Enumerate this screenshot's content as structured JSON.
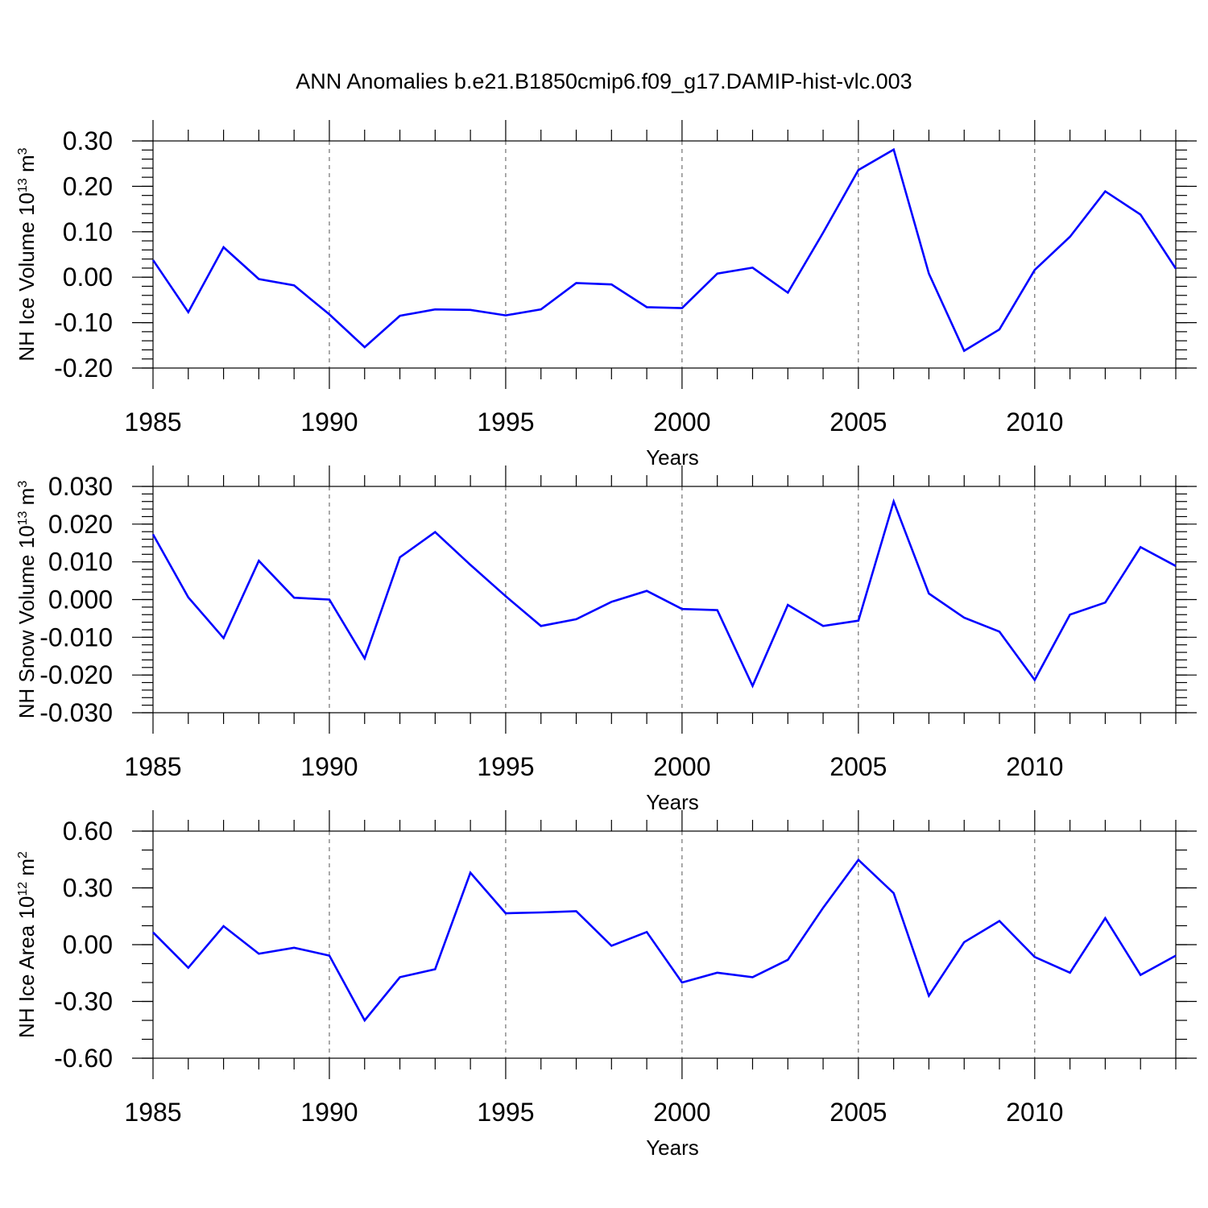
{
  "title": "ANN Anomalies b.e21.B1850cmip6.f09_g17.DAMIP-hist-vlc.003",
  "chart_data": [
    {
      "type": "line",
      "name": "ice-volume",
      "ylabel": "NH Ice Volume",
      "ylabel_unit_base": "10",
      "ylabel_unit_exp": "13",
      "ylabel_unit_symbol": "m",
      "ylabel_unit_sym_exp": "3",
      "xlabel": "Years",
      "xlim": [
        1985,
        2014
      ],
      "ylim": [
        -0.2,
        0.3
      ],
      "yticks": [
        -0.2,
        -0.1,
        0.0,
        0.1,
        0.2,
        0.3
      ],
      "ytick_labels": [
        "-0.20",
        "-0.10",
        "0.00",
        "0.10",
        "0.20",
        "0.30"
      ],
      "yminor_step": 0.02,
      "xticks": [
        1985,
        1990,
        1995,
        2000,
        2005,
        2010
      ],
      "xtick_labels": [
        "1985",
        "1990",
        "1995",
        "2000",
        "2005",
        "2010"
      ],
      "grid": "x-major-dashed",
      "color": "#0000ff",
      "x": [
        1985,
        1986,
        1987,
        1988,
        1989,
        1990,
        1991,
        1992,
        1993,
        1994,
        1995,
        1996,
        1997,
        1998,
        1999,
        2000,
        2001,
        2002,
        2003,
        2004,
        2005,
        2006,
        2007,
        2008,
        2009,
        2010,
        2011,
        2012,
        2013,
        2014
      ],
      "y": [
        0.038,
        -0.077,
        0.066,
        -0.004,
        -0.018,
        -0.082,
        -0.154,
        -0.085,
        -0.071,
        -0.072,
        -0.084,
        -0.071,
        -0.013,
        -0.016,
        -0.066,
        -0.068,
        0.008,
        0.021,
        -0.034,
        0.098,
        0.236,
        0.281,
        0.008,
        -0.162,
        -0.115,
        0.016,
        0.089,
        0.189,
        0.138,
        0.019
      ]
    },
    {
      "type": "line",
      "name": "snow-volume",
      "ylabel": "NH Snow Volume",
      "ylabel_unit_base": "10",
      "ylabel_unit_exp": "13",
      "ylabel_unit_symbol": "m",
      "ylabel_unit_sym_exp": "3",
      "xlabel": "Years",
      "xlim": [
        1985,
        2014
      ],
      "ylim": [
        -0.03,
        0.03
      ],
      "yticks": [
        -0.03,
        -0.02,
        -0.01,
        0.0,
        0.01,
        0.02,
        0.03
      ],
      "ytick_labels": [
        "-0.030",
        "-0.020",
        "-0.010",
        "0.000",
        "0.010",
        "0.020",
        "0.030"
      ],
      "yminor_step": 0.002,
      "xticks": [
        1985,
        1990,
        1995,
        2000,
        2005,
        2010
      ],
      "xtick_labels": [
        "1985",
        "1990",
        "1995",
        "2000",
        "2005",
        "2010"
      ],
      "grid": "x-major-dashed",
      "color": "#0000ff",
      "x": [
        1985,
        1986,
        1987,
        1988,
        1989,
        1990,
        1991,
        1992,
        1993,
        1994,
        1995,
        1996,
        1997,
        1998,
        1999,
        2000,
        2001,
        2002,
        2003,
        2004,
        2005,
        2006,
        2007,
        2008,
        2009,
        2010,
        2011,
        2012,
        2013,
        2014
      ],
      "y": [
        0.0173,
        0.0006,
        -0.0102,
        0.0103,
        0.0005,
        0.0,
        -0.0156,
        0.0112,
        0.0179,
        0.0092,
        0.0009,
        -0.007,
        -0.0052,
        -0.0006,
        0.0023,
        -0.0025,
        -0.0028,
        -0.0229,
        -0.0014,
        -0.007,
        -0.0056,
        0.026,
        0.0016,
        -0.0048,
        -0.0085,
        -0.0213,
        -0.004,
        -0.0008,
        0.0139,
        0.0089
      ]
    },
    {
      "type": "line",
      "name": "ice-area",
      "ylabel": "NH Ice Area",
      "ylabel_unit_base": "10",
      "ylabel_unit_exp": "12",
      "ylabel_unit_symbol": "m",
      "ylabel_unit_sym_exp": "2",
      "xlabel": "Years",
      "xlim": [
        1985,
        2014
      ],
      "ylim": [
        -0.6,
        0.6
      ],
      "yticks": [
        -0.6,
        -0.3,
        0.0,
        0.3,
        0.6
      ],
      "ytick_labels": [
        "-0.60",
        "-0.30",
        "0.00",
        "0.30",
        "0.60"
      ],
      "yminor_step": 0.1,
      "xticks": [
        1985,
        1990,
        1995,
        2000,
        2005,
        2010
      ],
      "xtick_labels": [
        "1985",
        "1990",
        "1995",
        "2000",
        "2005",
        "2010"
      ],
      "grid": "x-major-dashed",
      "color": "#0000ff",
      "x": [
        1985,
        1986,
        1987,
        1988,
        1989,
        1990,
        1991,
        1992,
        1993,
        1994,
        1995,
        1996,
        1997,
        1998,
        1999,
        2000,
        2001,
        2002,
        2003,
        2004,
        2005,
        2006,
        2007,
        2008,
        2009,
        2010,
        2011,
        2012,
        2013,
        2014
      ],
      "y": [
        0.065,
        -0.122,
        0.098,
        -0.048,
        -0.016,
        -0.058,
        -0.4,
        -0.172,
        -0.13,
        0.38,
        0.166,
        0.17,
        0.177,
        -0.006,
        0.067,
        -0.2,
        -0.148,
        -0.172,
        -0.08,
        0.195,
        0.448,
        0.272,
        -0.27,
        0.013,
        0.125,
        -0.065,
        -0.148,
        0.14,
        -0.16,
        -0.058
      ]
    }
  ]
}
